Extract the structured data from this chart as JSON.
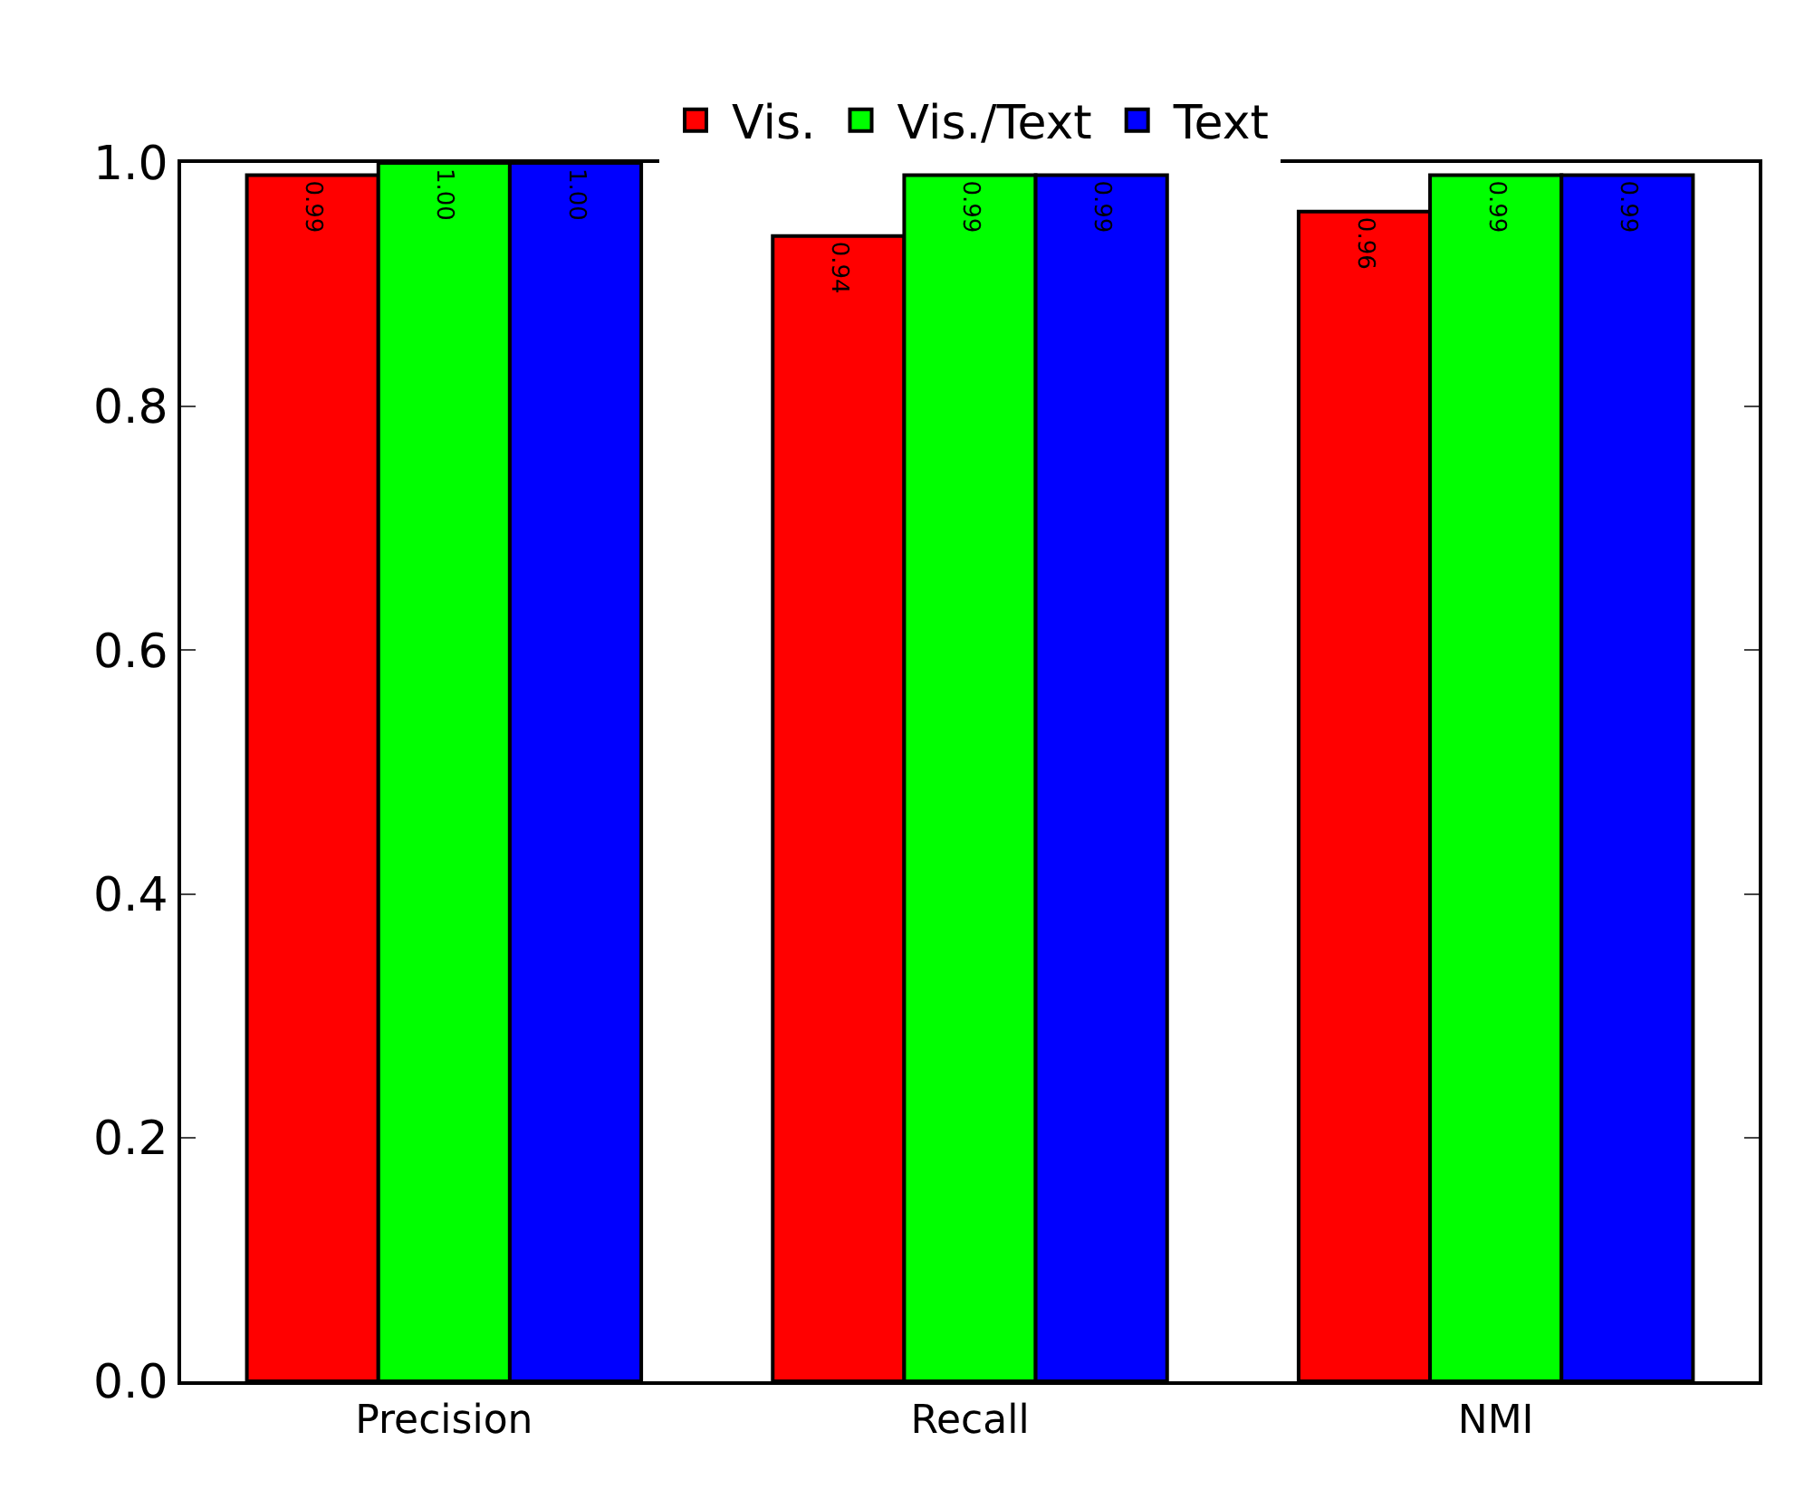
{
  "chart_data": {
    "type": "bar",
    "categories": [
      "Precision",
      "Recall",
      "NMI"
    ],
    "series": [
      {
        "name": "Vis.",
        "color": "#ff0000",
        "values": [
          0.99,
          0.94,
          0.96
        ],
        "value_labels": [
          "0.99",
          "0.94",
          "0.96"
        ]
      },
      {
        "name": "Vis./Text",
        "color": "#00ff00",
        "values": [
          1.0,
          0.99,
          0.99
        ],
        "value_labels": [
          "1.00",
          "0.99",
          "0.99"
        ]
      },
      {
        "name": "Text",
        "color": "#0000ff",
        "values": [
          1.0,
          0.99,
          0.99
        ],
        "value_labels": [
          "1.00",
          "0.99",
          "0.99"
        ]
      }
    ],
    "ylim": [
      0,
      1
    ],
    "yticks": [
      {
        "value": 0,
        "label": "0.0"
      },
      {
        "value": 0.2,
        "label": "0.2"
      },
      {
        "value": 0.4,
        "label": "0.4"
      },
      {
        "value": 0.6,
        "label": "0.6"
      },
      {
        "value": 0.8,
        "label": "0.8"
      },
      {
        "value": 1,
        "label": "1.0"
      }
    ],
    "grid": false,
    "legend": "top"
  }
}
